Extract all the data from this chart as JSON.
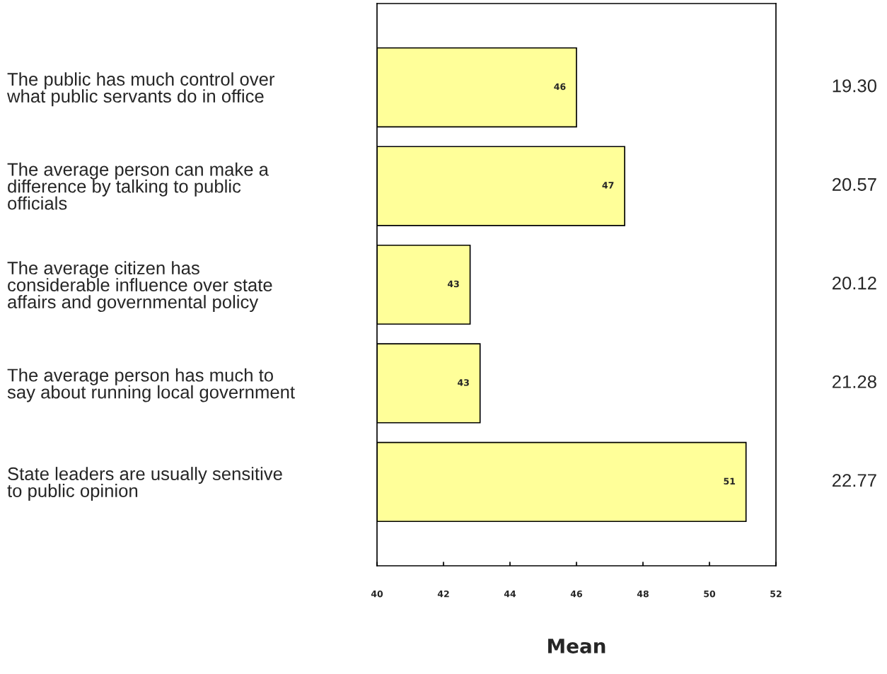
{
  "chart_data": {
    "type": "bar",
    "orientation": "horizontal",
    "xlabel": "Mean",
    "categories": [
      "The public has much control over\nwhat public servants do in office",
      "The average person can make a\ndifference by talking to public\nofficials",
      "The average citizen has\nconsiderable influence over state\naffairs and governmental policy",
      "The average person has much to\nsay about running local government",
      "State leaders are usually sensitive\nto public opinion"
    ],
    "values": [
      46.0,
      47.45,
      42.8,
      43.1,
      51.1
    ],
    "value_labels": [
      "46",
      "47",
      "43",
      "43",
      "51"
    ],
    "color": "#ffff99",
    "xlim": [
      40,
      52
    ],
    "xticks": [
      40,
      42,
      44,
      46,
      48,
      50,
      52
    ],
    "grid": false,
    "annotations": [
      "19.30",
      "20.57",
      "20.12",
      "21.28",
      "22.77"
    ]
  }
}
